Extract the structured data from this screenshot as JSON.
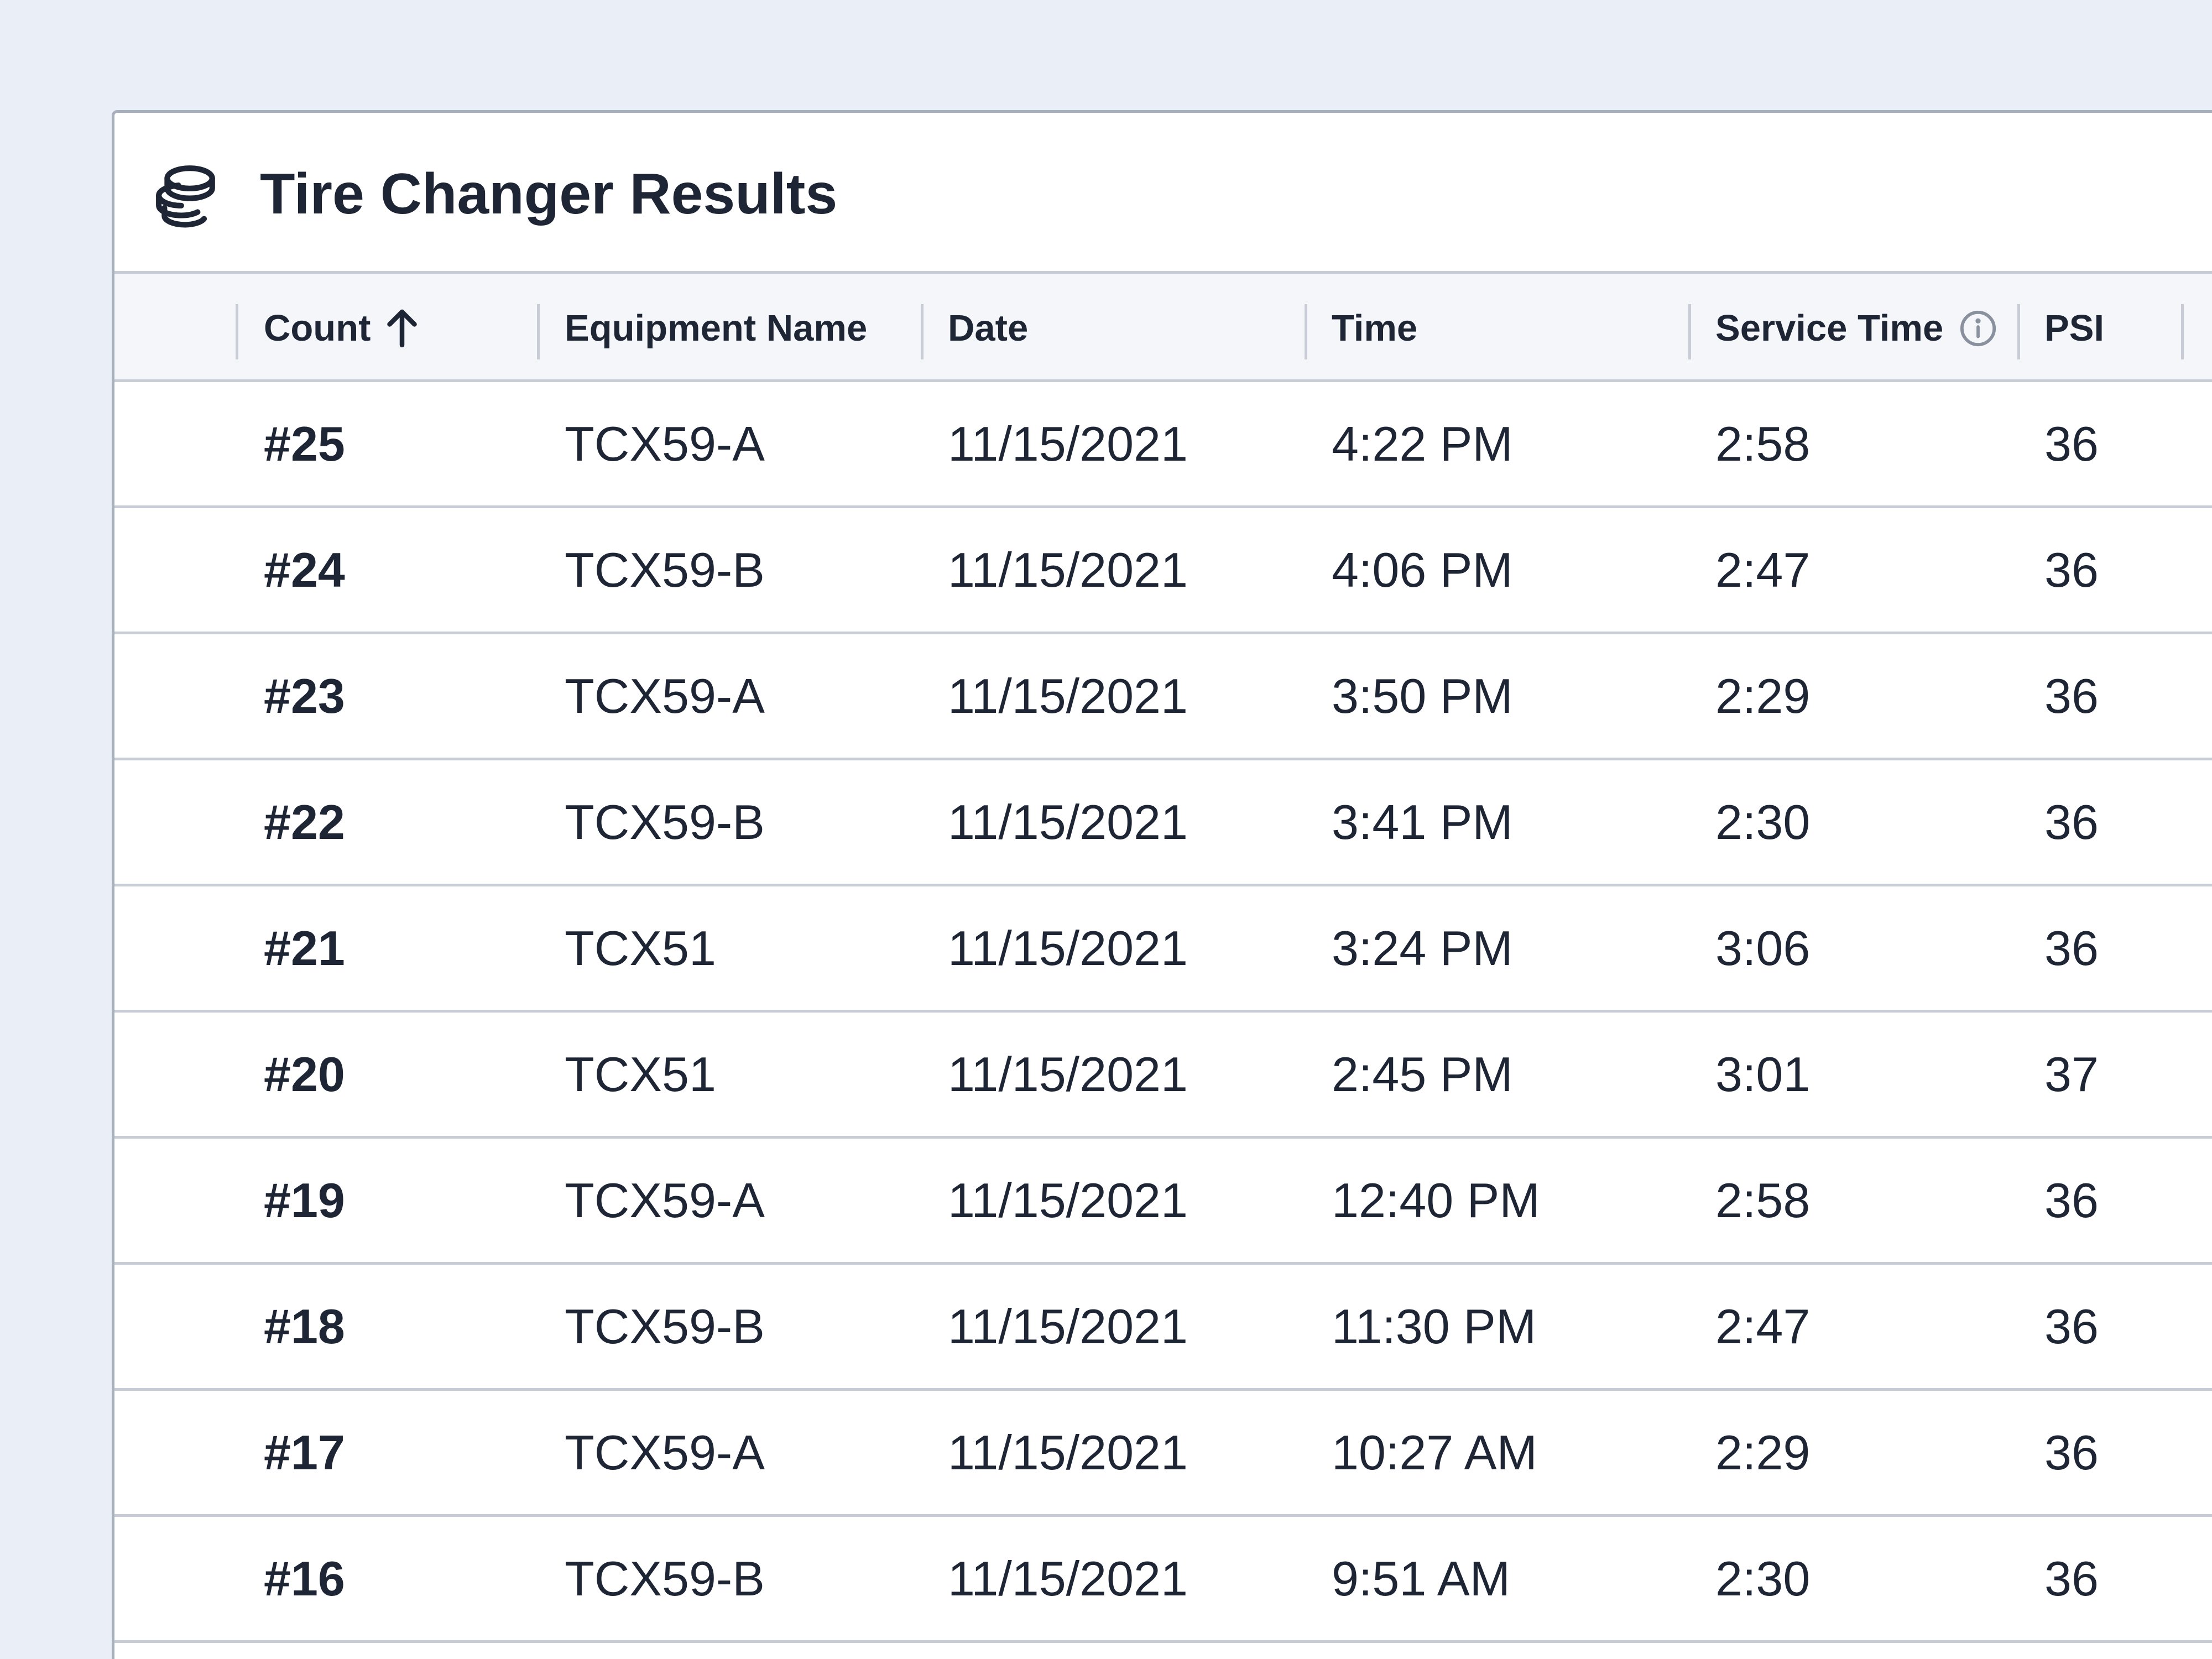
{
  "panel": {
    "title": "Tire Changer Results",
    "icon": "coins-stack-icon"
  },
  "table": {
    "columns": [
      {
        "key": "count",
        "label": "Count",
        "sort": "ascending"
      },
      {
        "key": "equipment",
        "label": "Equipment Name"
      },
      {
        "key": "date",
        "label": "Date"
      },
      {
        "key": "time",
        "label": "Time"
      },
      {
        "key": "service_time",
        "label": "Service Time",
        "info_icon": "info-icon"
      },
      {
        "key": "psi",
        "label": "PSI"
      }
    ],
    "rows": [
      {
        "count": "#25",
        "equipment": "TCX59-A",
        "date": "11/15/2021",
        "time": "4:22 PM",
        "service_time": "2:58",
        "psi": "36"
      },
      {
        "count": "#24",
        "equipment": "TCX59-B",
        "date": "11/15/2021",
        "time": "4:06 PM",
        "service_time": "2:47",
        "psi": "36"
      },
      {
        "count": "#23",
        "equipment": "TCX59-A",
        "date": "11/15/2021",
        "time": "3:50 PM",
        "service_time": "2:29",
        "psi": "36"
      },
      {
        "count": "#22",
        "equipment": "TCX59-B",
        "date": "11/15/2021",
        "time": "3:41 PM",
        "service_time": "2:30",
        "psi": "36"
      },
      {
        "count": "#21",
        "equipment": "TCX51",
        "date": "11/15/2021",
        "time": "3:24 PM",
        "service_time": "3:06",
        "psi": "36"
      },
      {
        "count": "#20",
        "equipment": "TCX51",
        "date": "11/15/2021",
        "time": "2:45 PM",
        "service_time": "3:01",
        "psi": "37"
      },
      {
        "count": "#19",
        "equipment": "TCX59-A",
        "date": "11/15/2021",
        "time": "12:40 PM",
        "service_time": "2:58",
        "psi": "36"
      },
      {
        "count": "#18",
        "equipment": "TCX59-B",
        "date": "11/15/2021",
        "time": "11:30 PM",
        "service_time": "2:47",
        "psi": "36"
      },
      {
        "count": "#17",
        "equipment": "TCX59-A",
        "date": "11/15/2021",
        "time": "10:27 AM",
        "service_time": "2:29",
        "psi": "36"
      },
      {
        "count": "#16",
        "equipment": "TCX59-B",
        "date": "11/15/2021",
        "time": "9:51 AM",
        "service_time": "2:30",
        "psi": "36"
      }
    ]
  },
  "colors": {
    "page_background": "#eaeef6",
    "panel_background": "#ffffff",
    "header_row_background": "#f5f6fa",
    "text": "#1e2534",
    "border": "#c7ccd6",
    "icon_muted": "#8a919e"
  }
}
